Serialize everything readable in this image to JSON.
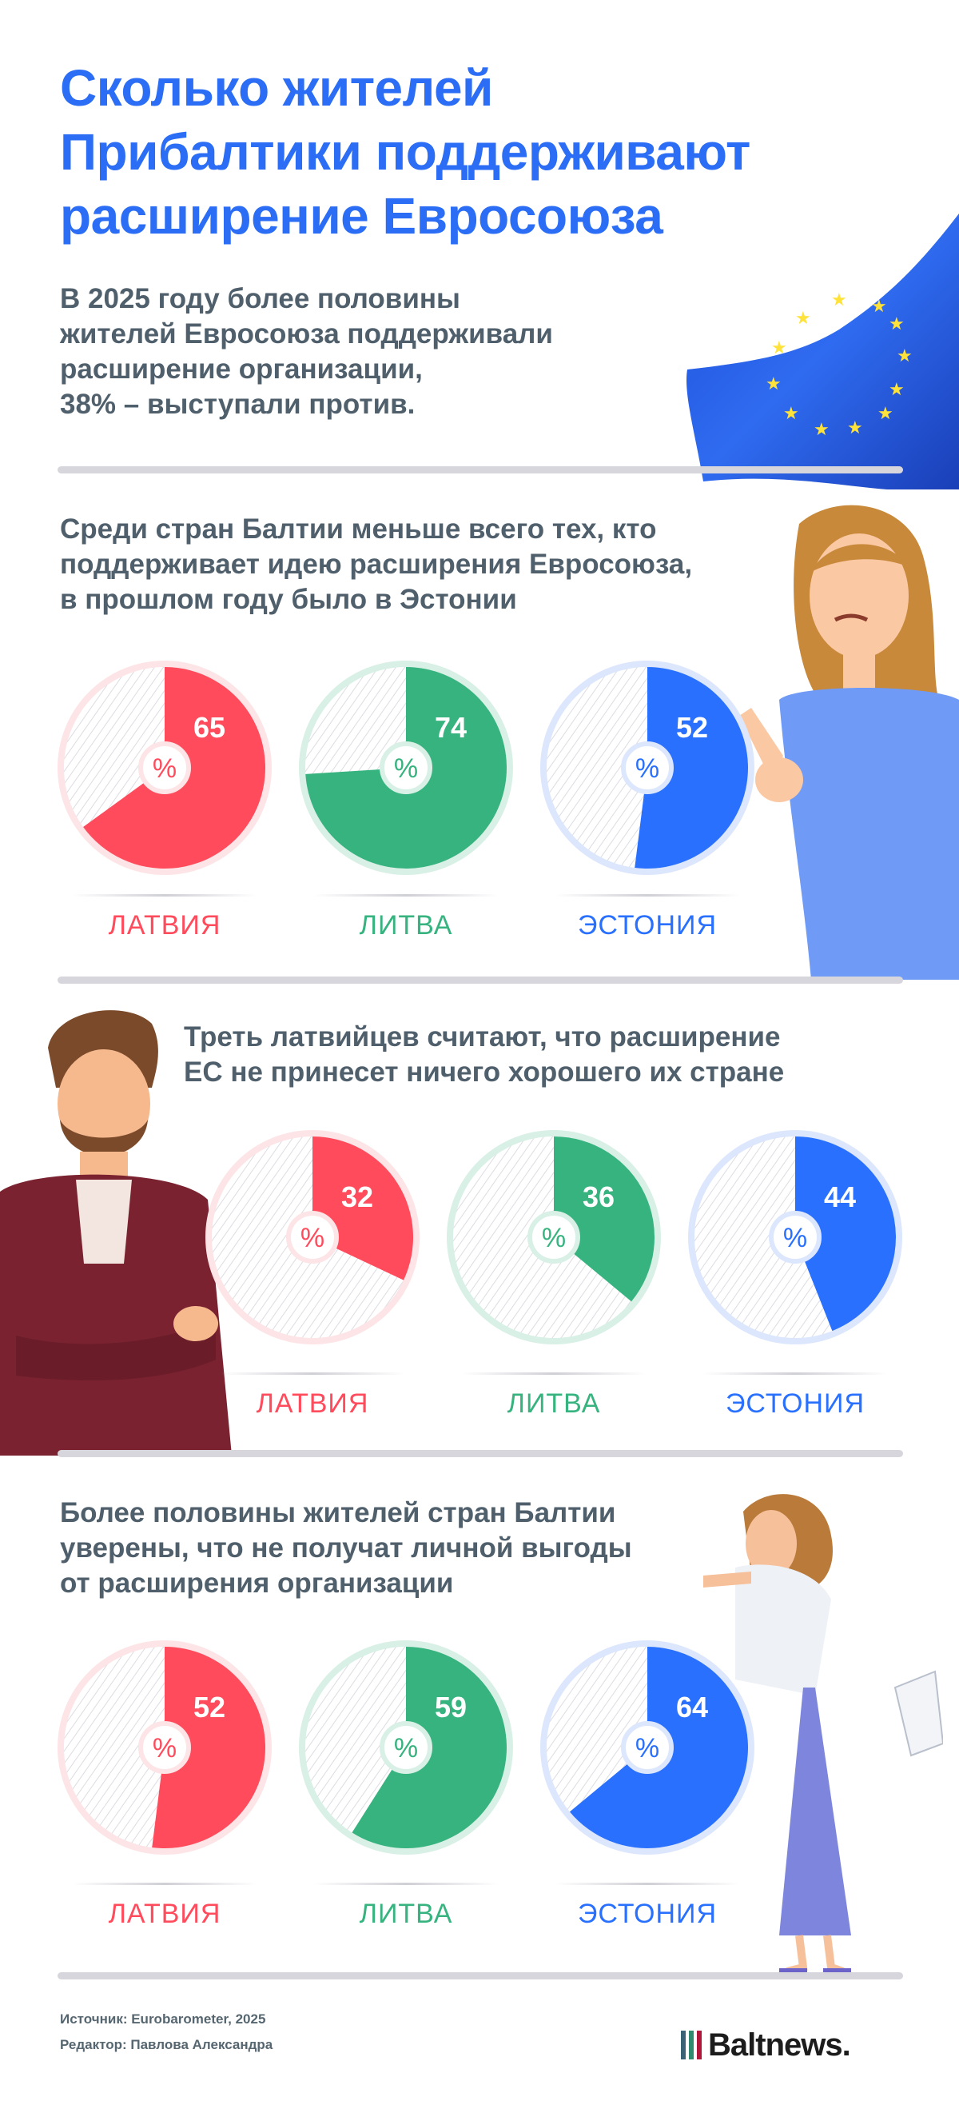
{
  "title": [
    "Сколько жителей",
    "Прибалтики поддерживают",
    "расширение Евросоюза"
  ],
  "lead": [
    "В 2025 году более половины",
    "жителей Евросоюза поддерживали",
    "расширение организации,",
    "38% – выступали против."
  ],
  "colors": {
    "latvia": "#ff4b5c",
    "lithuania": "#36b37e",
    "estonia": "#2970ff",
    "title": "#2b6ef5",
    "text": "#4f5f6b"
  },
  "chart_data": [
    {
      "type": "pie",
      "title": "Среди стран Балтии меньше всего тех, кто поддерживает идею расширения Евросоюза, в прошлом году было в Эстонии",
      "unit": "%",
      "categories": [
        "ЛАТВИЯ",
        "ЛИТВА",
        "ЭСТОНИЯ"
      ],
      "values": [
        65,
        74,
        52
      ]
    },
    {
      "type": "pie",
      "title": "Треть латвийцев считают, что расширение ЕС не принесет ничего хорошего их стране",
      "unit": "%",
      "categories": [
        "ЛАТВИЯ",
        "ЛИТВА",
        "ЭСТОНИЯ"
      ],
      "values": [
        32,
        36,
        44
      ]
    },
    {
      "type": "pie",
      "title": "Более половины жителей стран Балтии уверены, что не получат личной выгоды от расширения организации",
      "unit": "%",
      "categories": [
        "ЛАТВИЯ",
        "ЛИТВА",
        "ЭСТОНИЯ"
      ],
      "values": [
        52,
        59,
        64
      ]
    }
  ],
  "sections": [
    {
      "heading": [
        "Среди стран Балтии меньше всего тех, кто",
        "поддерживает идею расширения Евросоюза,",
        "в прошлом году было в Эстонии"
      ]
    },
    {
      "heading": [
        "Треть латвийцев считают, что расширение",
        "ЕС не принесет ничего хорошего их стране"
      ]
    },
    {
      "heading": [
        "Более половины жителей стран Балтии",
        "уверены, что не получат личной выгоды",
        "от расширения организации"
      ]
    }
  ],
  "percent_sign": "%",
  "footer": {
    "source": "Источник: Eurobarometer, 2025",
    "editor": "Редактор: Павлова Александра",
    "logo": "Baltnews."
  }
}
